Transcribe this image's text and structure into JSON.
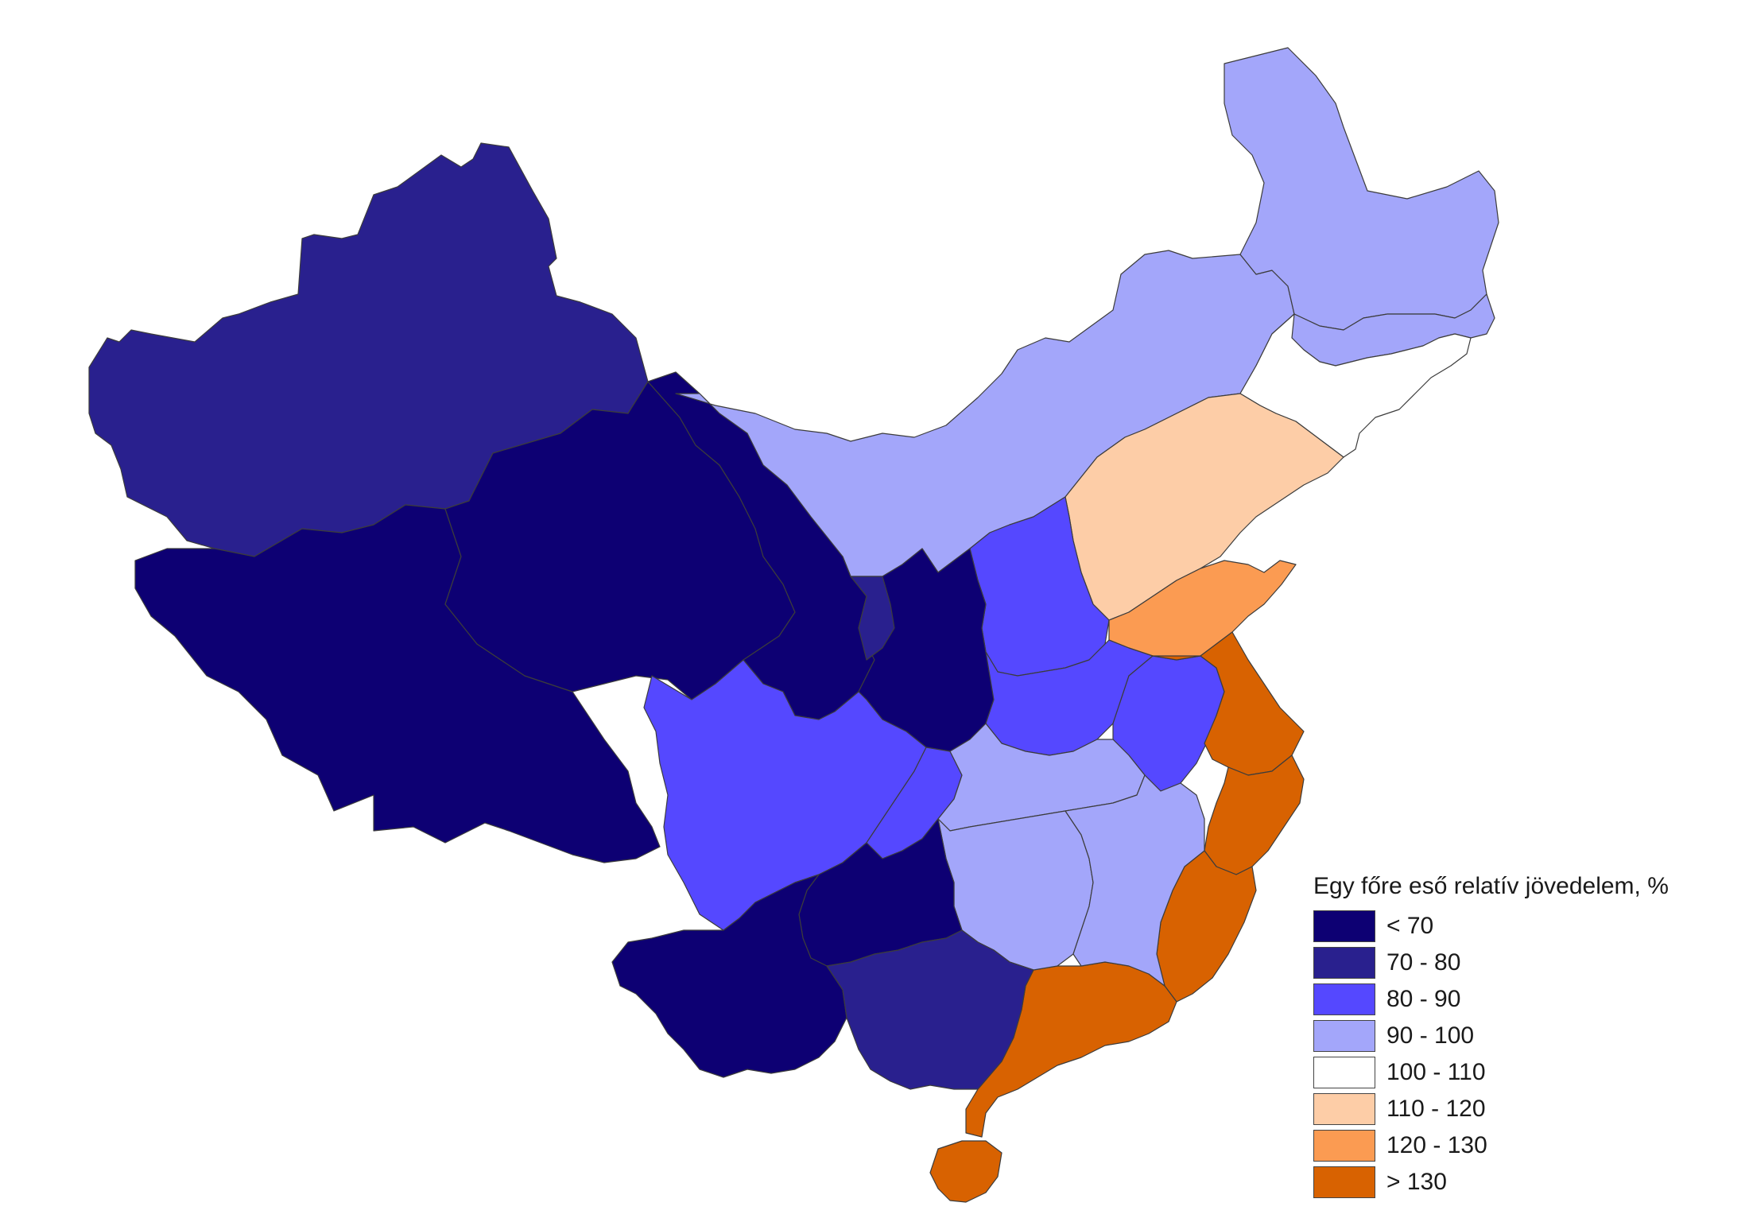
{
  "legend": {
    "title": "Egy főre eső relatív jövedelem, %",
    "classes": [
      {
        "label": "< 70",
        "color": "#0d0073"
      },
      {
        "label": "70 - 80",
        "color": "#29208e"
      },
      {
        "label": "80 - 90",
        "color": "#5548ff"
      },
      {
        "label": "90 - 100",
        "color": "#a3a6fa"
      },
      {
        "label": "100 - 110",
        "color": "#ffffff"
      },
      {
        "label": "110 - 120",
        "color": "#fdcda7"
      },
      {
        "label": "120 - 130",
        "color": "#fb9b52"
      },
      {
        "label": "> 130",
        "color": "#d86201"
      }
    ]
  },
  "regions": [
    {
      "id": "xinjiang",
      "class": 1
    },
    {
      "id": "tibet",
      "class": 0
    },
    {
      "id": "qinghai",
      "class": 0
    },
    {
      "id": "gansu",
      "class": 0
    },
    {
      "id": "ningxia",
      "class": 1
    },
    {
      "id": "inner-mongolia",
      "class": 3
    },
    {
      "id": "heilongjiang",
      "class": 3
    },
    {
      "id": "jilin",
      "class": 3
    },
    {
      "id": "liaoning",
      "class": 4
    },
    {
      "id": "beijing-tianjin-hebei",
      "class": 5
    },
    {
      "id": "shanxi",
      "class": 2
    },
    {
      "id": "shaanxi",
      "class": 0
    },
    {
      "id": "shandong",
      "class": 6
    },
    {
      "id": "henan",
      "class": 2
    },
    {
      "id": "anhui",
      "class": 2
    },
    {
      "id": "jiangsu-shanghai",
      "class": 7
    },
    {
      "id": "zhejiang",
      "class": 7
    },
    {
      "id": "fujian",
      "class": 7
    },
    {
      "id": "guangdong",
      "class": 7
    },
    {
      "id": "hainan",
      "class": 7
    },
    {
      "id": "sichuan",
      "class": 2
    },
    {
      "id": "chongqing",
      "class": 2
    },
    {
      "id": "hubei",
      "class": 3
    },
    {
      "id": "hunan",
      "class": 3
    },
    {
      "id": "jiangxi",
      "class": 3
    },
    {
      "id": "guizhou",
      "class": 0
    },
    {
      "id": "yunnan",
      "class": 0
    },
    {
      "id": "guangxi",
      "class": 1
    }
  ]
}
